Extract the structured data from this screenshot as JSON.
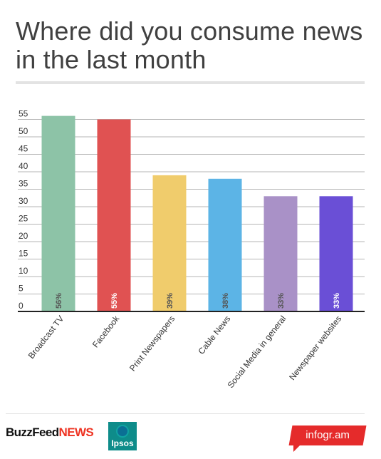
{
  "title": "Where did you consume news in the last month",
  "footer": {
    "buzzfeed_word": "BuzzFeed",
    "news_word": "NEWS",
    "ipsos_label": "Ipsos",
    "infogram_label": "infogr.am"
  },
  "colors": {
    "axis": "#222222",
    "grid": "#b5b5b5",
    "tick_text": "#333333"
  },
  "chart_data": {
    "type": "bar",
    "categories": [
      "Broadcast TV",
      "Facebook",
      "Print Newspapers",
      "Cable News",
      "Social Media in general",
      "Newspaper websites"
    ],
    "values": [
      56,
      55,
      39,
      38,
      33,
      33
    ],
    "data_labels": [
      "56%",
      "55%",
      "39%",
      "38%",
      "33%",
      "33%"
    ],
    "colors": [
      "#8dc3a7",
      "#e05252",
      "#f0cc6c",
      "#5cb4e6",
      "#a991c7",
      "#6a4fd6"
    ],
    "label_colors": [
      "#555555",
      "#ffffff",
      "#555555",
      "#555555",
      "#555555",
      "#ffffff"
    ],
    "yticks": [
      0,
      5,
      10,
      15,
      20,
      25,
      30,
      35,
      40,
      45,
      50,
      55
    ],
    "ylim": [
      0,
      57
    ],
    "grid": true,
    "legend": false
  }
}
